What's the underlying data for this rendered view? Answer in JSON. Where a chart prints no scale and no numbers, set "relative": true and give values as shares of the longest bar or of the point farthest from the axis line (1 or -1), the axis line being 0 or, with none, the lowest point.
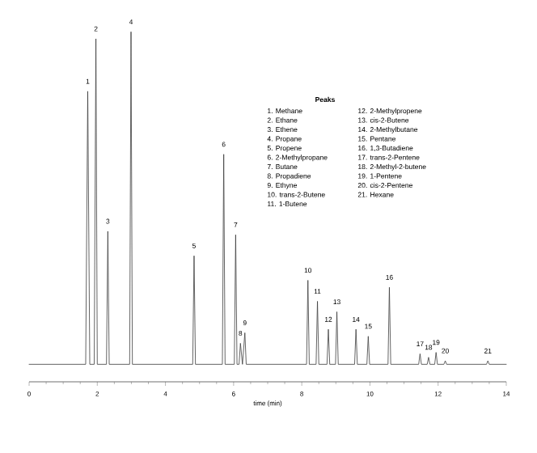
{
  "chart_data": {
    "type": "line",
    "relative": true,
    "xlabel": "time (min)",
    "xlim": [
      0,
      14
    ],
    "xticks": [
      0,
      2,
      4,
      6,
      8,
      10,
      12,
      14
    ],
    "grid": false,
    "marker": "none",
    "line_style": "solid",
    "series": [
      {
        "color": "#3c3c3c",
        "x": [
          0,
          1.66,
          1.72,
          1.78,
          1.91,
          1.96,
          2.0,
          2.27,
          2.31,
          2.35,
          2.95,
          2.99,
          3.03,
          4.8,
          4.84,
          4.88,
          5.67,
          5.71,
          5.75,
          6.02,
          6.06,
          6.1,
          6.16,
          6.2,
          6.26,
          6.33,
          6.37,
          8.14,
          8.18,
          8.22,
          8.42,
          8.46,
          8.5,
          8.74,
          8.78,
          8.82,
          8.99,
          9.03,
          9.07,
          9.55,
          9.59,
          9.63,
          9.91,
          9.95,
          9.99,
          10.53,
          10.57,
          10.61,
          11.43,
          11.47,
          11.51,
          11.68,
          11.72,
          11.76,
          11.9,
          11.94,
          11.98,
          12.17,
          12.21,
          12.25,
          13.42,
          13.46,
          13.5,
          14
        ],
        "values": [
          0.05,
          0.05,
          0.83,
          0.05,
          0.05,
          0.98,
          0.05,
          0.05,
          0.43,
          0.05,
          0.05,
          1,
          0.05,
          0.05,
          0.36,
          0.05,
          0.05,
          0.65,
          0.05,
          0.05,
          0.42,
          0.05,
          0.05,
          0.11,
          0.05,
          0.14,
          0.05,
          0.05,
          0.29,
          0.05,
          0.05,
          0.23,
          0.05,
          0.05,
          0.15,
          0.05,
          0.05,
          0.2,
          0.05,
          0.05,
          0.15,
          0.05,
          0.05,
          0.13,
          0.05,
          0.05,
          0.27,
          0.05,
          0.05,
          0.08,
          0.05,
          0.05,
          0.07,
          0.05,
          0.05,
          0.084,
          0.05,
          0.05,
          0.06,
          0.05,
          0.05,
          0.06,
          0.05,
          0.05
        ]
      }
    ],
    "annotations": [
      {
        "text": "1",
        "x": 1.72,
        "y": 0.83
      },
      {
        "text": "2",
        "x": 1.96,
        "y": 0.98
      },
      {
        "text": "3",
        "x": 2.31,
        "y": 0.43
      },
      {
        "text": "4",
        "x": 2.99,
        "y": 1
      },
      {
        "text": "5",
        "x": 4.84,
        "y": 0.36
      },
      {
        "text": "6",
        "x": 5.71,
        "y": 0.65
      },
      {
        "text": "7",
        "x": 6.06,
        "y": 0.42
      },
      {
        "text": "8",
        "x": 6.2,
        "y": 0.11
      },
      {
        "text": "9",
        "x": 6.33,
        "y": 0.14
      },
      {
        "text": "10",
        "x": 8.18,
        "y": 0.29
      },
      {
        "text": "11",
        "x": 8.46,
        "y": 0.23
      },
      {
        "text": "12",
        "x": 8.78,
        "y": 0.15
      },
      {
        "text": "13",
        "x": 9.03,
        "y": 0.2
      },
      {
        "text": "14",
        "x": 9.59,
        "y": 0.15
      },
      {
        "text": "15",
        "x": 9.95,
        "y": 0.13
      },
      {
        "text": "16",
        "x": 10.57,
        "y": 0.27
      },
      {
        "text": "17",
        "x": 11.47,
        "y": 0.08
      },
      {
        "text": "18",
        "x": 11.72,
        "y": 0.07
      },
      {
        "text": "19",
        "x": 11.94,
        "y": 0.084
      },
      {
        "text": "20",
        "x": 12.21,
        "y": 0.06
      },
      {
        "text": "21",
        "x": 13.46,
        "y": 0.06
      },
      "Peaks",
      "1. Methane",
      "2. Ethane",
      "3. Ethene",
      "4. Propane",
      "5. Propene",
      "6. 2-Methylpropane",
      "7. Butane",
      "8. Propadiene",
      "9. Ethyne",
      "10. trans-2-Butene",
      "11. 1-Butene",
      "12. 2-Methylpropene",
      "13. cis-2-Butene",
      "14. 2-Methylbutane",
      "15. Pentane",
      "16. 1,3-Butadiene",
      "17. trans-2-Pentene",
      "18. 2-Methyl-2-butene",
      "19. 1-Pentene",
      "20. cis-2-Pentene",
      "21. Hexane"
    ]
  }
}
